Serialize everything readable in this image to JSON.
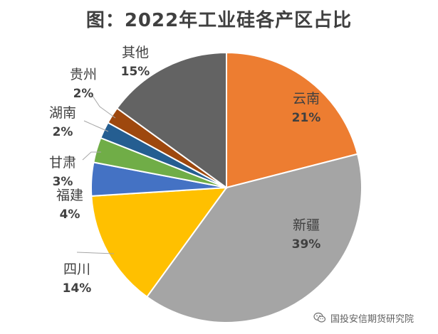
{
  "chart_data": {
    "type": "pie",
    "title": "图：2022年工业硅各产区占比",
    "slices": [
      {
        "name": "云南",
        "value": 21,
        "label": "21%",
        "color": "#ED7D31"
      },
      {
        "name": "新疆",
        "value": 39,
        "label": "39%",
        "color": "#A5A5A5"
      },
      {
        "name": "四川",
        "value": 14,
        "label": "14%",
        "color": "#FFC000"
      },
      {
        "name": "福建",
        "value": 4,
        "label": "4%",
        "color": "#4472C4"
      },
      {
        "name": "甘肃",
        "value": 3,
        "label": "3%",
        "color": "#70AD47"
      },
      {
        "name": "湖南",
        "value": 2,
        "label": "2%",
        "color": "#255E91"
      },
      {
        "name": "贵州",
        "value": 2,
        "label": "2%",
        "color": "#9E480E"
      },
      {
        "name": "其他",
        "value": 15,
        "label": "15%",
        "color": "#636363"
      }
    ]
  },
  "watermark": {
    "text": "国投安信期货研究院",
    "icon": "wechat-icon"
  }
}
